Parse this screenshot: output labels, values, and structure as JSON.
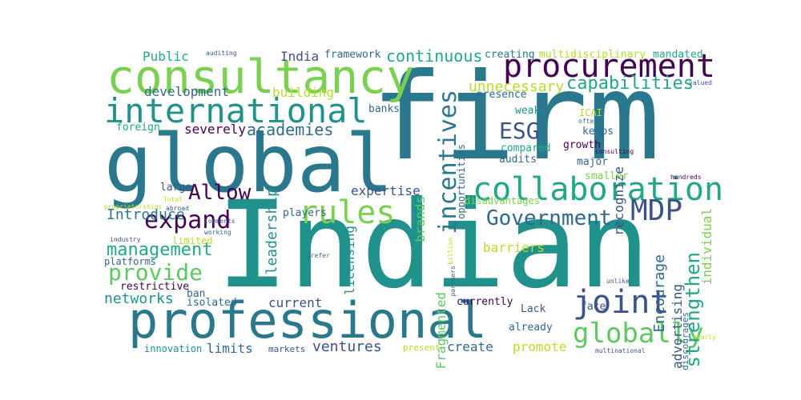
{
  "words": [
    {
      "text": "firm",
      "color": "#2a788e"
    },
    {
      "text": "Indian",
      "color": "#21918c"
    },
    {
      "text": "global",
      "color": "#2a788e"
    },
    {
      "text": "professional",
      "color": "#2a788e"
    },
    {
      "text": "consultancy",
      "color": "#7ad151"
    },
    {
      "text": "procurement",
      "color": "#440154"
    },
    {
      "text": "international",
      "color": "#21918c"
    },
    {
      "text": "collaboration",
      "color": "#22a884"
    },
    {
      "text": "incentives",
      "color": "#2a788e"
    },
    {
      "text": "rules",
      "color": "#7ad151"
    },
    {
      "text": "MDP",
      "color": "#3b528b"
    },
    {
      "text": "joint",
      "color": "#3b528b"
    },
    {
      "text": "Government",
      "color": "#31688e"
    },
    {
      "text": "globally",
      "color": "#5ec962"
    },
    {
      "text": "expand",
      "color": "#440154"
    },
    {
      "text": "Allow",
      "color": "#440154"
    },
    {
      "text": "provide",
      "color": "#5ec962"
    },
    {
      "text": "management",
      "color": "#22a884"
    },
    {
      "text": "ESG",
      "color": "#3b528b"
    },
    {
      "text": "strengthen",
      "color": "#22a884"
    },
    {
      "text": "capabilities",
      "color": "#22a884"
    },
    {
      "text": "continuous",
      "color": "#22a884"
    },
    {
      "text": "academies",
      "color": "#31688e"
    },
    {
      "text": "development",
      "color": "#31688e"
    },
    {
      "text": "leadership",
      "color": "#21918c"
    },
    {
      "text": "Encourage",
      "color": "#31688e"
    },
    {
      "text": "unnecessary",
      "color": "#b5de2b"
    },
    {
      "text": "Introduce",
      "color": "#2a788e"
    },
    {
      "text": "networks",
      "color": "#21918c"
    },
    {
      "text": "ventures",
      "color": "#3b528b"
    },
    {
      "text": "licensing",
      "color": "#21918c"
    },
    {
      "text": "brands",
      "color": "#5ec962"
    },
    {
      "text": "recognize",
      "color": "#3b528b"
    },
    {
      "text": "advertising",
      "color": "#3b528b"
    },
    {
      "text": "individual",
      "color": "#7ad151"
    },
    {
      "text": "Fragmented",
      "color": "#5ec962"
    },
    {
      "text": "severely",
      "color": "#440154"
    },
    {
      "text": "building",
      "color": "#b5de2b"
    },
    {
      "text": "expertise",
      "color": "#3b528b"
    },
    {
      "text": "barriers",
      "color": "#b5de2b"
    },
    {
      "text": "promote",
      "color": "#b5de2b"
    },
    {
      "text": "create",
      "color": "#31688e"
    },
    {
      "text": "limits",
      "color": "#31688e"
    },
    {
      "text": "current",
      "color": "#3b528b"
    },
    {
      "text": "Public",
      "color": "#22a884"
    },
    {
      "text": "India",
      "color": "#3b528b"
    },
    {
      "text": "framework",
      "color": "#31688e"
    },
    {
      "text": "creating",
      "color": "#2a788e"
    },
    {
      "text": "multidisciplinary",
      "color": "#b5de2b"
    },
    {
      "text": "mandated",
      "color": "#22a884"
    },
    {
      "text": "presence",
      "color": "#31688e"
    },
    {
      "text": "weak",
      "color": "#21918c"
    },
    {
      "text": "banks",
      "color": "#31688e"
    },
    {
      "text": "opportunities",
      "color": "#31688e"
    },
    {
      "text": "ICAI",
      "color": "#b5de2b"
    },
    {
      "text": "keeps",
      "color": "#31688e"
    },
    {
      "text": "compared",
      "color": "#22a884"
    },
    {
      "text": "growth",
      "color": "#440154"
    },
    {
      "text": "audits",
      "color": "#31688e"
    },
    {
      "text": "major",
      "color": "#31688e"
    },
    {
      "text": "smaller",
      "color": "#7ad151"
    },
    {
      "text": "foreign",
      "color": "#22a884"
    },
    {
      "text": "large",
      "color": "#3b528b"
    },
    {
      "text": "players",
      "color": "#31688e"
    },
    {
      "text": "disadvantages",
      "color": "#7ad151"
    },
    {
      "text": "restrictive",
      "color": "#440154"
    },
    {
      "text": "ban",
      "color": "#31688e"
    },
    {
      "text": "isolated",
      "color": "#31688e"
    },
    {
      "text": "platforms",
      "color": "#31688e"
    },
    {
      "text": "limited",
      "color": "#b5de2b"
    },
    {
      "text": "currently",
      "color": "#440154"
    },
    {
      "text": "Lack",
      "color": "#3b528b"
    },
    {
      "text": "face",
      "color": "#3b528b"
    },
    {
      "text": "already",
      "color": "#31688e"
    },
    {
      "text": "innovation",
      "color": "#21918c"
    },
    {
      "text": "markets",
      "color": "#3b528b"
    },
    {
      "text": "present",
      "color": "#b5de2b"
    },
    {
      "text": "discourages",
      "color": "#31688e"
    },
    {
      "text": "auditing",
      "color": "#3b528b"
    },
    {
      "text": "valued",
      "color": "#3b528b"
    },
    {
      "text": "often",
      "color": "#31688e"
    },
    {
      "text": "consulting",
      "color": "#440154"
    },
    {
      "text": "hundreds",
      "color": "#440154"
    },
    {
      "text": "Total",
      "color": "#b5de2b"
    },
    {
      "text": "proprietorships",
      "color": "#b5de2b"
    },
    {
      "text": "abroad",
      "color": "#3b528b"
    },
    {
      "text": "Comments",
      "color": "#3b528b"
    },
    {
      "text": "working",
      "color": "#31688e"
    },
    {
      "text": "industry",
      "color": "#3b528b"
    },
    {
      "text": "billion",
      "color": "#b5de2b"
    },
    {
      "text": "prefer",
      "color": "#31688e"
    },
    {
      "text": "partners",
      "color": "#31688e"
    },
    {
      "text": "unlike",
      "color": "#3b528b"
    },
    {
      "text": "multinational",
      "color": "#3b528b"
    },
    {
      "text": "nearly",
      "color": "#b5de2b"
    }
  ]
}
